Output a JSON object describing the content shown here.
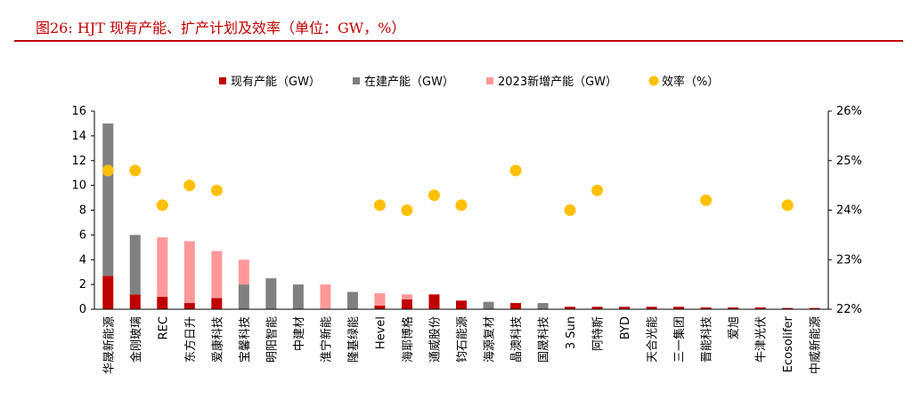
{
  "figure": {
    "title": "图26:  HJT 现有产能、扩产计划及效率（单位：GW，%）"
  },
  "chart_data": {
    "type": "bar",
    "stacked": true,
    "categories": [
      "华晟新能源",
      "金刚玻璃",
      "REC",
      "东方日升",
      "爱康科技",
      "宝馨科技",
      "明阳智能",
      "中建材",
      "淮宁新能",
      "隆基绿能",
      "Hevel",
      "海耶博格",
      "通威股份",
      "钧石能源",
      "海源复材",
      "晶澳科技",
      "国晟科技",
      "3 Sun",
      "阿特斯",
      "BYD",
      "天合光能",
      "三一集团",
      "晋能科技",
      "爱旭",
      "牛津光伏",
      "Ecosolifer",
      "中威新能源"
    ],
    "series": [
      {
        "name": "现有产能（GW）",
        "color": "#c00000",
        "axis": "left",
        "values": [
          2.7,
          1.2,
          1.0,
          0.5,
          0.9,
          0,
          0,
          0,
          0,
          0,
          0.3,
          0.8,
          1.2,
          0.7,
          0,
          0.5,
          0,
          0.2,
          0.2,
          0.2,
          0.2,
          0.2,
          0.15,
          0.15,
          0.15,
          0.1,
          0.1
        ]
      },
      {
        "name": "在建产能（GW）",
        "color": "#808080",
        "axis": "left",
        "values": [
          12.3,
          4.8,
          0,
          0,
          0,
          2.0,
          2.5,
          2.0,
          0,
          1.4,
          0,
          0,
          0,
          0,
          0.6,
          0,
          0.5,
          0,
          0,
          0,
          0,
          0,
          0,
          0,
          0,
          0,
          0
        ]
      },
      {
        "name": "2023新增产能（GW）",
        "color": "#ff9999",
        "axis": "left",
        "values": [
          0,
          0,
          4.8,
          5.0,
          3.8,
          2.0,
          0,
          0,
          2.0,
          0,
          1.0,
          0.4,
          0,
          0,
          0,
          0,
          0,
          0,
          0,
          0,
          0,
          0,
          0,
          0,
          0,
          0,
          0
        ]
      },
      {
        "name": "效率（%）",
        "color": "#ffc000",
        "axis": "right",
        "type": "scatter",
        "values": [
          24.8,
          24.8,
          24.1,
          24.5,
          24.4,
          null,
          null,
          null,
          null,
          null,
          24.1,
          24.0,
          24.3,
          24.1,
          null,
          24.8,
          null,
          24.0,
          24.4,
          null,
          null,
          null,
          24.2,
          null,
          null,
          24.1,
          null
        ]
      }
    ],
    "ylim": [
      0,
      16
    ],
    "yticks": [
      "0",
      "2",
      "4",
      "6",
      "8",
      "10",
      "12",
      "14",
      "16"
    ],
    "y2lim": [
      22,
      26
    ],
    "y2ticks": [
      "22%",
      "23%",
      "24%",
      "25%",
      "26%"
    ],
    "grid": false,
    "legend": "top"
  }
}
